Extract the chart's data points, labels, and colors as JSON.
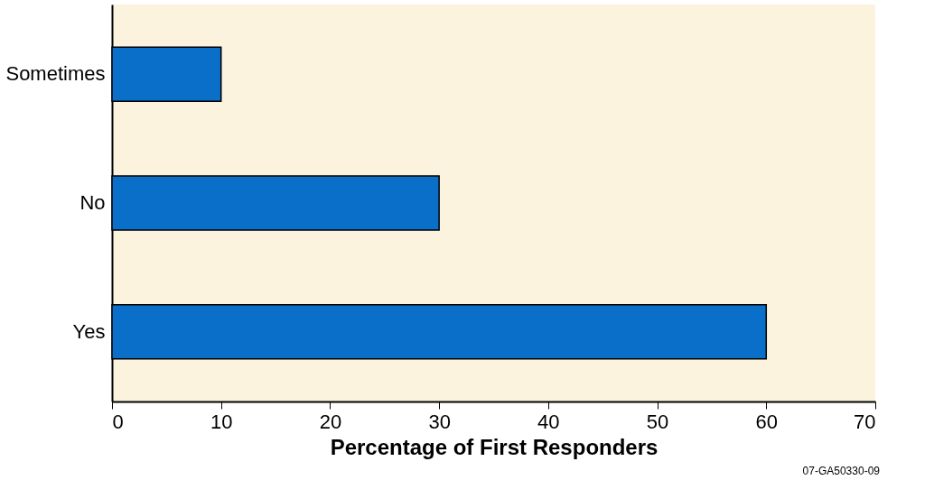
{
  "chart_data": {
    "type": "bar",
    "orientation": "horizontal",
    "categories": [
      "Sometimes",
      "No",
      "Yes"
    ],
    "values": [
      10,
      30,
      60
    ],
    "color": "#0a6fc8",
    "xlabel": "Percentage of First Responders",
    "xlim": [
      0,
      70
    ],
    "xticks": [
      0,
      10,
      20,
      30,
      40,
      50,
      60,
      70
    ],
    "grid": false,
    "annotations": [
      "07-GA50330-09"
    ]
  }
}
